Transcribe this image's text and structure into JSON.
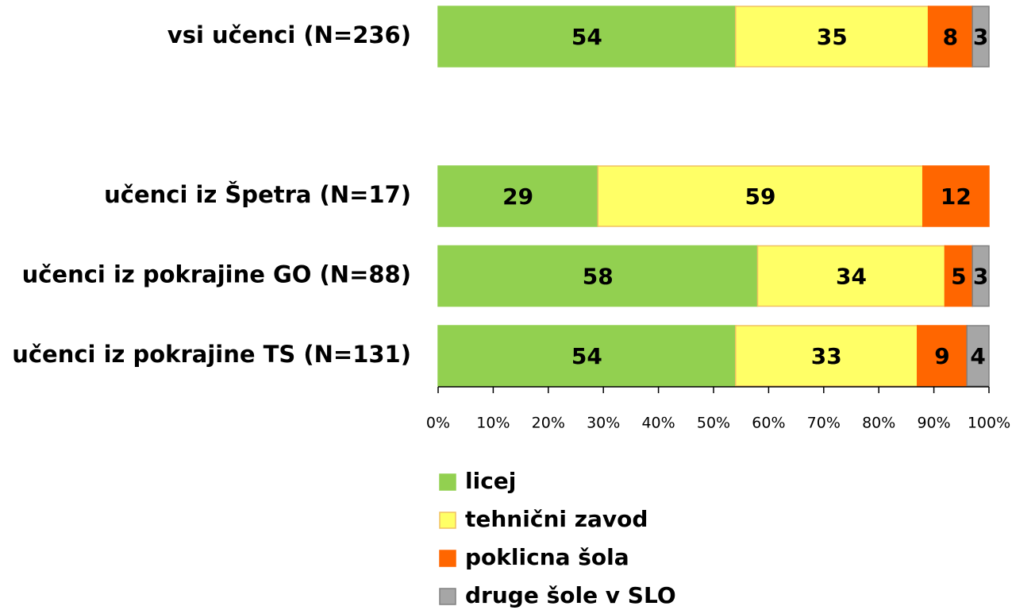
{
  "chart_data": {
    "type": "stacked_barh",
    "categories": [
      "vsi učenci (N=236)",
      null,
      "učenci iz Špetra (N=17)",
      "učenci iz pokrajine GO (N=88)",
      "učenci iz pokrajine TS (N=131)"
    ],
    "series": [
      {
        "name": "licej",
        "color": "#92d050",
        "values": [
          54,
          null,
          29,
          58,
          54
        ]
      },
      {
        "name": "tehnični zavod",
        "color": "#ffff66",
        "values": [
          35,
          null,
          59,
          34,
          33
        ]
      },
      {
        "name": "poklicna šola",
        "color": "#ff6600",
        "values": [
          8,
          null,
          12,
          5,
          9
        ]
      },
      {
        "name": "druge šole v SLO",
        "color": "#a6a6a6",
        "values": [
          3,
          null,
          null,
          3,
          4
        ]
      }
    ],
    "xlim": [
      0,
      100
    ],
    "xticks": [
      {
        "value": 0,
        "label": "0%"
      },
      {
        "value": 10,
        "label": "10%"
      },
      {
        "value": 20,
        "label": "20%"
      },
      {
        "value": 30,
        "label": "30%"
      },
      {
        "value": 40,
        "label": "40%"
      },
      {
        "value": 50,
        "label": "50%"
      },
      {
        "value": 60,
        "label": "60%"
      },
      {
        "value": 70,
        "label": "70%"
      },
      {
        "value": 80,
        "label": "80%"
      },
      {
        "value": 90,
        "label": "90%"
      },
      {
        "value": 100,
        "label": "100%"
      }
    ],
    "legend": "bottom-left"
  }
}
